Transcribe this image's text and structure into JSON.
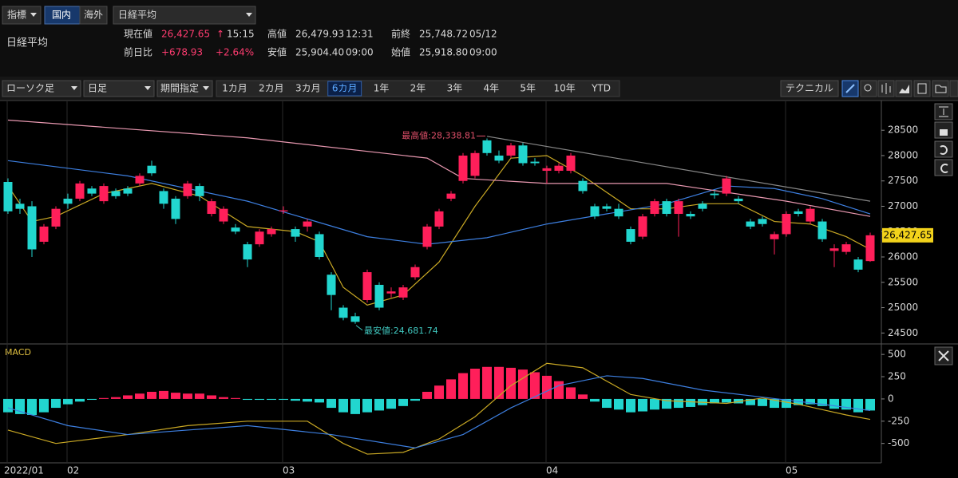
{
  "header": {
    "indicator": "指標",
    "domestic": "国内",
    "overseas": "海外",
    "symbol": "日経平均",
    "name": "日経平均"
  },
  "quote": {
    "rows": [
      [
        {
          "label": "現在値",
          "value": "26,427.65",
          "arrow": "↑",
          "time": "15:15"
        },
        {
          "label": "高値",
          "value": "26,479.93",
          "time": "12:31"
        },
        {
          "label": "前終",
          "value": "25,748.72",
          "time": "05/12"
        }
      ],
      [
        {
          "label": "前日比",
          "value": "+678.93",
          "pct": "+2.64%"
        },
        {
          "label": "安値",
          "value": "25,904.40",
          "time": "09:00"
        },
        {
          "label": "始値",
          "value": "25,918.80",
          "time": "09:00"
        }
      ]
    ]
  },
  "toolbar": {
    "chart_type": "ローソク足",
    "interval": "日足",
    "period_mode": "期間指定",
    "periods": [
      "1カ月",
      "2カ月",
      "3カ月",
      "6カ月",
      "1年",
      "2年",
      "3年",
      "4年",
      "5年",
      "10年",
      "YTD"
    ],
    "active": 3,
    "technical": "テクニカル"
  },
  "chart_data": [
    {
      "type": "candlestick",
      "categories": [
        "2022/01",
        null,
        null,
        null,
        null,
        "02",
        null,
        null,
        null,
        null,
        null,
        null,
        null,
        null,
        null,
        null,
        null,
        null,
        null,
        null,
        null,
        null,
        null,
        "03",
        null,
        null,
        null,
        null,
        null,
        null,
        null,
        null,
        null,
        null,
        null,
        null,
        null,
        null,
        null,
        null,
        null,
        null,
        null,
        null,
        null,
        "04",
        null,
        null,
        null,
        null,
        null,
        null,
        null,
        null,
        null,
        null,
        null,
        null,
        null,
        null,
        null,
        null,
        null,
        null,
        null,
        "05",
        null,
        null,
        null,
        null,
        null,
        null,
        null
      ],
      "open": [
        27480,
        27050,
        27000,
        26300,
        26600,
        27150,
        27150,
        27350,
        27100,
        27300,
        27350,
        27450,
        27800,
        27300,
        27150,
        27200,
        27400,
        26850,
        26700,
        26580,
        26250,
        26250,
        26450,
        26900,
        26550,
        26600,
        26450,
        25650,
        25000,
        24830,
        25150,
        25450,
        25280,
        25200,
        25600,
        26200,
        26600,
        27150,
        27500,
        27600,
        28300,
        28000,
        28000,
        28200,
        27880,
        27700,
        27700,
        27700,
        27500,
        27000,
        27000,
        26950,
        26550,
        26400,
        26850,
        27100,
        26850,
        26850,
        27050,
        27250,
        27250,
        27150,
        26700,
        26750,
        26350,
        26450,
        26900,
        26700,
        26700,
        26120,
        26100,
        25950,
        25918.8
      ],
      "high": [
        27550,
        27150,
        27100,
        26650,
        27000,
        27250,
        27500,
        27400,
        27450,
        27350,
        27400,
        27650,
        27900,
        27350,
        27200,
        27500,
        27450,
        27150,
        27000,
        26650,
        26300,
        26550,
        26600,
        27000,
        26600,
        26750,
        26500,
        25700,
        25050,
        24900,
        25750,
        25500,
        25400,
        25450,
        25850,
        26650,
        26950,
        27300,
        28050,
        28100,
        28338.81,
        28100,
        28250,
        28250,
        27950,
        27800,
        27850,
        28050,
        27550,
        27050,
        27050,
        27050,
        26600,
        26850,
        27150,
        27150,
        27150,
        26900,
        27100,
        27300,
        27600,
        27200,
        26750,
        26800,
        26500,
        26900,
        26950,
        27000,
        26750,
        26250,
        26300,
        26000,
        26479.93
      ],
      "low": [
        26850,
        26850,
        26000,
        26250,
        26550,
        26950,
        27100,
        27200,
        27050,
        27150,
        27200,
        27400,
        27600,
        26950,
        26650,
        27150,
        27100,
        26800,
        26650,
        26450,
        25800,
        26200,
        26400,
        26850,
        26300,
        26500,
        25950,
        24950,
        24750,
        24681.74,
        25100,
        24950,
        25200,
        25150,
        25550,
        26150,
        26550,
        27100,
        27450,
        27550,
        28000,
        27850,
        27950,
        27800,
        27800,
        27450,
        27650,
        27650,
        27250,
        26750,
        26900,
        26750,
        26250,
        26350,
        26800,
        26800,
        26400,
        26750,
        26900,
        27150,
        27200,
        27050,
        26550,
        26600,
        26050,
        26400,
        26800,
        26650,
        26300,
        25800,
        26050,
        25700,
        25904.4
      ],
      "close": [
        26900,
        26950,
        26150,
        26600,
        26950,
        27050,
        27450,
        27250,
        27400,
        27200,
        27250,
        27600,
        27650,
        27050,
        26750,
        27450,
        27200,
        27100,
        26950,
        26500,
        25950,
        26500,
        26550,
        26920,
        26400,
        26700,
        26000,
        25250,
        24800,
        24720,
        25700,
        25000,
        25320,
        25400,
        25800,
        26600,
        26900,
        27250,
        28000,
        28050,
        28050,
        27900,
        28200,
        27850,
        27850,
        27750,
        27800,
        28000,
        27300,
        26800,
        26950,
        26800,
        26300,
        26800,
        27100,
        26850,
        27100,
        26800,
        26950,
        27220,
        27550,
        27100,
        26600,
        26650,
        26450,
        26850,
        26850,
        26950,
        26350,
        26170,
        26250,
        25750,
        26427.65
      ],
      "up_color": "#ff1f5a",
      "down_color": "#22d6cf",
      "lines": [
        {
          "color": "#c9a824",
          "x": [
            0,
            2,
            4,
            8,
            12,
            16,
            20,
            24,
            26,
            28,
            30,
            33,
            36,
            39,
            42,
            45,
            48,
            52,
            55,
            58,
            61,
            64,
            67,
            70,
            72
          ],
          "values": [
            27400,
            26700,
            26800,
            27250,
            27450,
            27200,
            26600,
            26500,
            26300,
            25400,
            25050,
            25250,
            25900,
            27000,
            27950,
            28000,
            27600,
            26950,
            26950,
            27050,
            27050,
            26700,
            26650,
            26400,
            26150
          ]
        },
        {
          "color": "#3d7fe0",
          "x": [
            0,
            10,
            20,
            25,
            30,
            35,
            40,
            45,
            50,
            55,
            60,
            64,
            68,
            72
          ],
          "values": [
            27900,
            27600,
            27100,
            26750,
            26400,
            26250,
            26380,
            26650,
            26850,
            27050,
            27400,
            27350,
            27150,
            26850
          ]
        },
        {
          "color": "#e898b0",
          "x": [
            0,
            20,
            35,
            38,
            45,
            55,
            65,
            72
          ],
          "values": [
            28700,
            28350,
            27950,
            27550,
            27450,
            27450,
            27100,
            26800
          ]
        },
        {
          "color": "#888888",
          "x": [
            40,
            72
          ],
          "values": [
            28380,
            27100
          ]
        }
      ],
      "ylim": [
        24300,
        29070
      ],
      "yticks": [
        28500,
        28000,
        27500,
        27000,
        26500,
        26000,
        25500,
        25000,
        24500
      ],
      "annotations": {
        "high_label": "最高値:28,338.81",
        "low_label": "最安値:24,681.74",
        "last_label": "26,427.65"
      }
    },
    {
      "type": "bar",
      "title": "MACD",
      "values": [
        -150,
        -170,
        -180,
        -150,
        -100,
        -60,
        -30,
        -10,
        10,
        20,
        40,
        60,
        80,
        90,
        70,
        60,
        60,
        40,
        20,
        10,
        -10,
        -10,
        -10,
        -10,
        -20,
        -30,
        -40,
        -100,
        -150,
        -170,
        -150,
        -130,
        -110,
        -80,
        -20,
        80,
        150,
        220,
        290,
        340,
        360,
        360,
        350,
        330,
        300,
        260,
        200,
        130,
        50,
        -30,
        -100,
        -120,
        -150,
        -140,
        -120,
        -110,
        -100,
        -90,
        -70,
        -50,
        -40,
        -50,
        -70,
        -80,
        -100,
        -100,
        -70,
        -60,
        -80,
        -110,
        -120,
        -150,
        -130
      ],
      "up_color": "#ff1f5a",
      "down_color": "#22d6cf",
      "lines": [
        {
          "color": "#c9a824",
          "x": [
            0,
            4,
            10,
            15,
            20,
            25,
            28,
            30,
            33,
            36,
            39,
            42,
            45,
            48,
            52,
            55,
            60,
            63,
            66,
            70,
            72
          ],
          "values": [
            -350,
            -500,
            -400,
            -300,
            -250,
            -250,
            -500,
            -620,
            -600,
            -450,
            -200,
            150,
            400,
            350,
            50,
            -20,
            -50,
            10,
            -60,
            -180,
            -230
          ]
        },
        {
          "color": "#3d7fe0",
          "x": [
            0,
            5,
            10,
            15,
            20,
            27,
            34,
            38,
            42,
            46,
            50,
            53,
            58,
            63,
            68,
            72
          ],
          "values": [
            -100,
            -300,
            -400,
            -350,
            -300,
            -400,
            -550,
            -400,
            -100,
            150,
            260,
            230,
            100,
            20,
            -60,
            -130
          ]
        }
      ],
      "ylim": [
        -700,
        600
      ],
      "yticks": [
        500,
        250,
        0,
        -250,
        -500
      ]
    }
  ]
}
